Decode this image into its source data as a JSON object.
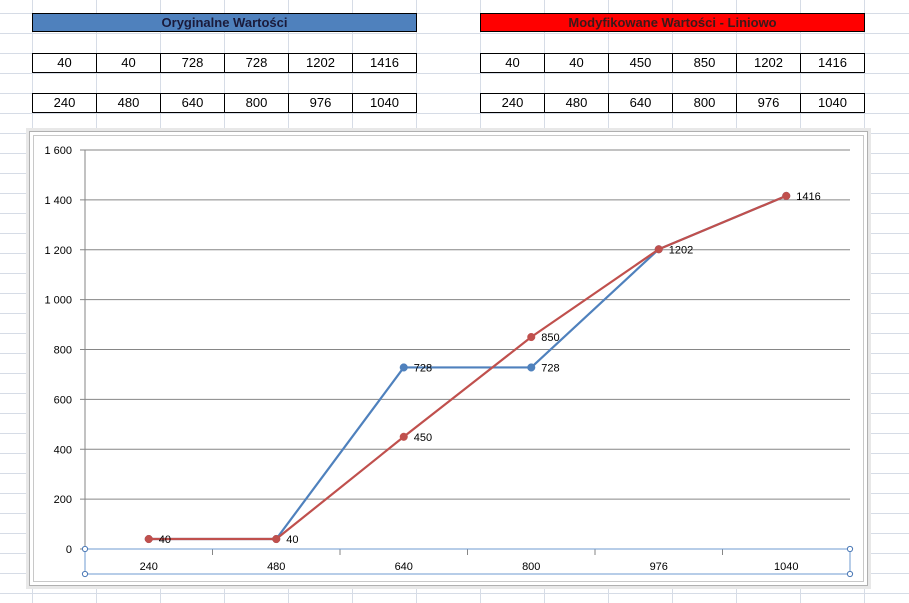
{
  "tables": {
    "original": {
      "title": "Oryginalne Wartości",
      "values": [
        "40",
        "40",
        "728",
        "728",
        "1202",
        "1416"
      ],
      "x": [
        "240",
        "480",
        "640",
        "800",
        "976",
        "1040"
      ]
    },
    "modified": {
      "title": "Modyfikowane Wartości - Liniowo",
      "values": [
        "40",
        "40",
        "450",
        "850",
        "1202",
        "1416"
      ],
      "x": [
        "240",
        "480",
        "640",
        "800",
        "976",
        "1040"
      ]
    }
  },
  "colors": {
    "header_original": "#4f81bd",
    "header_modified": "#ff0000",
    "series_original": "#4f81bd",
    "series_modified": "#c0504d"
  },
  "chart_data": {
    "type": "line",
    "categories": [
      "240",
      "480",
      "640",
      "800",
      "976",
      "1040"
    ],
    "series": [
      {
        "values": [
          40,
          40,
          728,
          728,
          1202,
          1416
        ],
        "labels": [
          "40",
          "40",
          "728",
          "728",
          "1202",
          "1416"
        ],
        "color": "#4f81bd"
      },
      {
        "values": [
          40,
          40,
          450,
          850,
          1202,
          1416
        ],
        "labels": [
          "40",
          "40",
          "450",
          "850",
          "1202",
          "1416"
        ],
        "color": "#c0504d"
      }
    ],
    "ylim": [
      0,
      1600
    ],
    "yticks": [
      0,
      200,
      400,
      600,
      800,
      1000,
      1200,
      1400,
      1600
    ],
    "ytick_labels": [
      "0",
      "200",
      "400",
      "600",
      "800",
      "1 000",
      "1 200",
      "1 400",
      "1 600"
    ],
    "grid": true,
    "legend": "none"
  }
}
